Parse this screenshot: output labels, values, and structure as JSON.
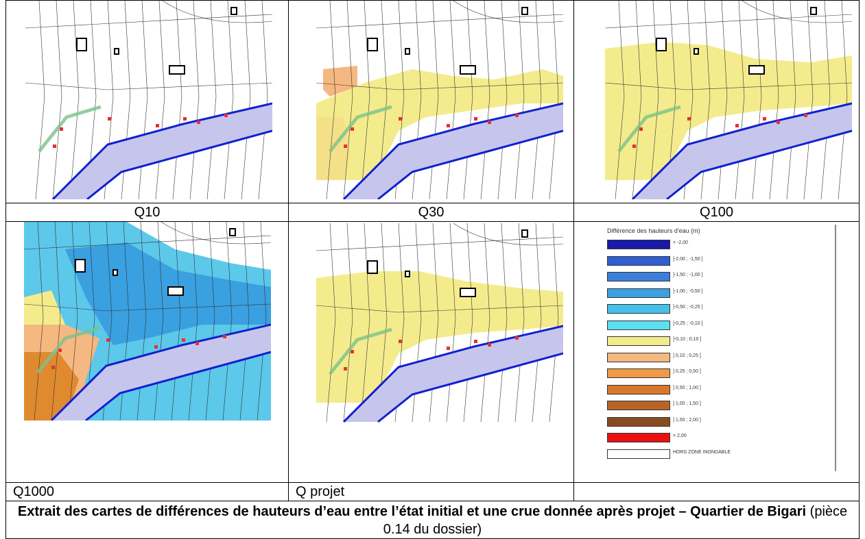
{
  "panels": {
    "q10": "Q10",
    "q30": "Q30",
    "q100": "Q100",
    "q1000": "Q1000",
    "qprojet": "Q projet"
  },
  "legend": {
    "title": "Différence des hauteurs d'eau (m)",
    "items": [
      {
        "label": "< -2,00",
        "color": "#1a1aa8"
      },
      {
        "label": "]-2,00 ; -1,50 ]",
        "color": "#2f5fd0"
      },
      {
        "label": "]-1,50 ; -1,00 ]",
        "color": "#3a7fdc"
      },
      {
        "label": "]-1,00 ; -0,50 ]",
        "color": "#3aa0e0"
      },
      {
        "label": "]-0,50 ; -0,25 ]",
        "color": "#45c0e8"
      },
      {
        "label": "]-0,25 ; -0,10 ]",
        "color": "#5ce0f0"
      },
      {
        "label": "]-0,10 ; 0,10 ]",
        "color": "#f4ec8c"
      },
      {
        "label": "] 0,10 ; 0,25 ]",
        "color": "#f5b880"
      },
      {
        "label": "] 0,25 ; 0,50 ]",
        "color": "#f09a48"
      },
      {
        "label": "] 0,50 ; 1,00 ]",
        "color": "#d9782a"
      },
      {
        "label": "] 1,00 ; 1,50 ]",
        "color": "#b86428"
      },
      {
        "label": "] 1,50 ; 2,00 ]",
        "color": "#8a4a20"
      },
      {
        "label": "> 2,00",
        "color": "#e81010"
      },
      {
        "label": "HORS ZONE INONDABLE",
        "color": "#ffffff"
      }
    ]
  },
  "caption": {
    "bold": "Extrait des cartes de différences de hauteurs d’eau entre l’état initial et une crue donnée après projet – Quartier de Bigari",
    "normal": " (pièce 0.14 du dossier)"
  }
}
